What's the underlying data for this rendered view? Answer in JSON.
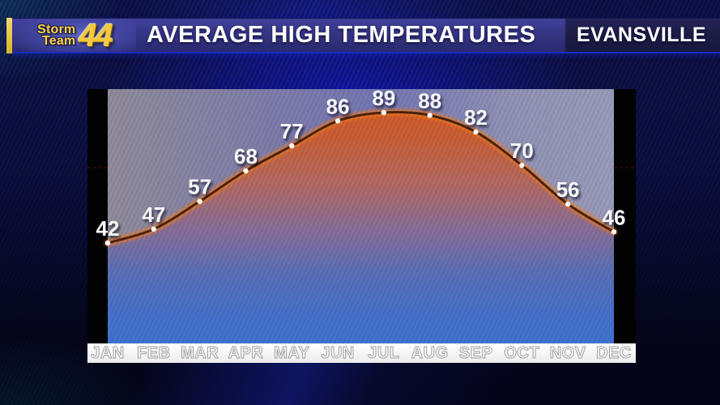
{
  "header": {
    "logo": {
      "line1": "Storm",
      "line2": "Team",
      "number": "44"
    },
    "title": "AVERAGE HIGH TEMPERATURES",
    "location": "EVANSVILLE"
  },
  "chart_data": {
    "type": "line",
    "title": "AVERAGE HIGH TEMPERATURES",
    "location": "EVANSVILLE",
    "categories": [
      "JAN",
      "FEB",
      "MAR",
      "APR",
      "MAY",
      "JUN",
      "JUL",
      "AUG",
      "SEP",
      "OCT",
      "NOV",
      "DEC"
    ],
    "values": [
      42,
      47,
      57,
      68,
      77,
      86,
      89,
      88,
      82,
      70,
      56,
      46
    ],
    "point_labels_visible": true,
    "grid": false,
    "legend": "none",
    "ylim": [
      40,
      92
    ]
  },
  "colors": {
    "accent_bar": "#e9c842",
    "header_band": "#32327e",
    "header_right_band": "#1b1b4e",
    "logo_gold": "#f5c93c",
    "title_text": "#ffffff",
    "curve_core": "#4a2410",
    "curve_glow": "#f37a1f",
    "fill_top": "#cf5c2c",
    "fill_bottom": "#4173cf",
    "plot_above_curve": "#8a8aaa",
    "month_strip_bg": "#f2f2f2",
    "side_bars": "#000000",
    "point_dot": "#ffffff",
    "value_label": "#ffffff",
    "month_label": "#ffffff"
  }
}
